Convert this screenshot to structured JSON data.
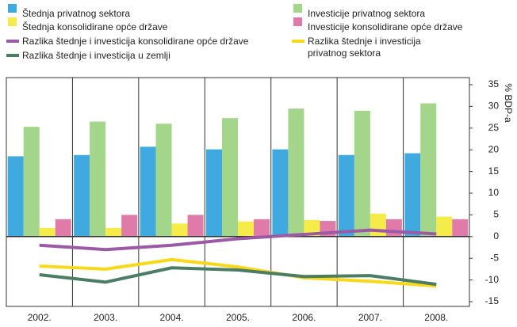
{
  "chart_data": {
    "type": "bar",
    "axis_label": "% BDP-a",
    "categories": [
      "2002.",
      "2003.",
      "2004.",
      "2005.",
      "2006.",
      "2007.",
      "2008."
    ],
    "series": [
      {
        "name": "Štednja privatnog sektora",
        "type": "bar",
        "color": "#3fa9e0",
        "values": [
          18.5,
          18.8,
          20.7,
          20.1,
          20.1,
          18.8,
          19.2
        ]
      },
      {
        "name": "Investicije privatnog sektora",
        "type": "bar",
        "color": "#a3d58a",
        "values": [
          25.3,
          26.5,
          26,
          27.3,
          29.5,
          29,
          30.7
        ]
      },
      {
        "name": "Štednja konsolidirane opće države",
        "type": "bar",
        "color": "#f5ec4a",
        "values": [
          2,
          2,
          3,
          3.5,
          3.8,
          5.3,
          4.6
        ]
      },
      {
        "name": "Investicije konsolidirane opće države",
        "type": "bar",
        "color": "#e07aa8",
        "values": [
          4,
          5,
          5,
          4,
          3.6,
          4,
          4
        ]
      },
      {
        "name": "Razlika štednje i investicija konsolidirane opće države",
        "type": "line",
        "color": "#9b59a6",
        "values": [
          -2,
          -3,
          -2,
          -0.5,
          0.5,
          1.5,
          0.6
        ]
      },
      {
        "name": "Razlika štednje i investicija privatnog sektora",
        "type": "line",
        "color": "#f7d91a",
        "values": [
          -6.8,
          -7.5,
          -5.3,
          -7,
          -9.5,
          -10.3,
          -11.4
        ]
      },
      {
        "name": "Razlika štednje i investicija u zemlji",
        "type": "line",
        "color": "#4a7d63",
        "values": [
          -8.8,
          -10.5,
          -7.2,
          -7.7,
          -9.2,
          -9,
          -11
        ]
      }
    ],
    "ylim": [
      -15,
      35
    ],
    "yticks": [
      35,
      30,
      25,
      20,
      15,
      10,
      5,
      0,
      -5,
      -10,
      -15
    ],
    "grid": false
  }
}
